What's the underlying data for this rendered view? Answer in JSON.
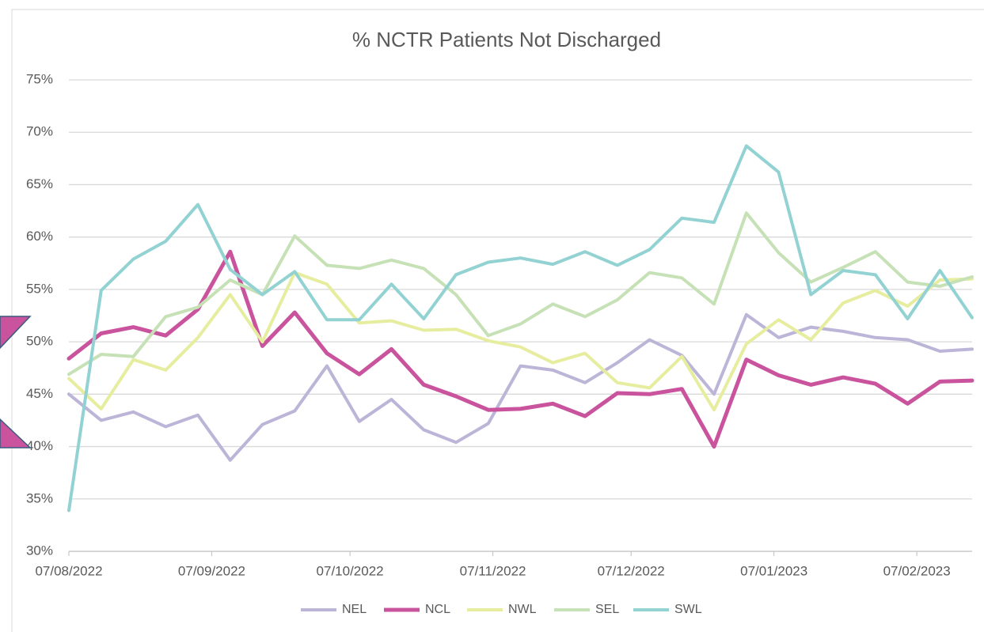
{
  "chart_data": {
    "type": "line",
    "title": "% NCTR Patients Not Discharged",
    "x": [
      "2022-08-07",
      "2022-08-14",
      "2022-08-21",
      "2022-08-28",
      "2022-09-04",
      "2022-09-11",
      "2022-09-18",
      "2022-09-25",
      "2022-10-02",
      "2022-10-09",
      "2022-10-16",
      "2022-10-23",
      "2022-10-30",
      "2022-11-06",
      "2022-11-13",
      "2022-11-20",
      "2022-11-27",
      "2022-12-04",
      "2022-12-11",
      "2022-12-18",
      "2022-12-25",
      "2023-01-01",
      "2023-01-08",
      "2023-01-15",
      "2023-01-22",
      "2023-01-29",
      "2023-02-05",
      "2023-02-12",
      "2023-02-19"
    ],
    "series": [
      {
        "name": "NEL",
        "color": "#bcb5d8",
        "values": [
          45.0,
          42.5,
          43.3,
          41.9,
          43.0,
          38.7,
          42.1,
          43.4,
          47.7,
          42.4,
          44.5,
          41.6,
          40.4,
          42.2,
          47.7,
          47.3,
          46.1,
          48.0,
          50.2,
          48.7,
          45.0,
          52.6,
          50.4,
          51.4,
          51.0,
          50.4,
          50.2,
          49.1,
          49.3
        ]
      },
      {
        "name": "NCL",
        "color": "#c9539c",
        "values": [
          48.4,
          50.8,
          51.4,
          50.6,
          53.1,
          58.6,
          49.6,
          52.8,
          48.9,
          46.9,
          49.3,
          45.9,
          44.8,
          43.5,
          43.6,
          44.1,
          42.9,
          45.1,
          45.0,
          45.5,
          40.0,
          48.3,
          46.8,
          45.9,
          46.6,
          46.0,
          44.1,
          46.2,
          46.3
        ]
      },
      {
        "name": "NWL",
        "color": "#e6ed9e",
        "values": [
          46.5,
          43.6,
          48.3,
          47.3,
          50.4,
          54.5,
          50.0,
          56.6,
          55.5,
          51.8,
          52.0,
          51.1,
          51.2,
          50.1,
          49.5,
          48.0,
          48.9,
          46.1,
          45.6,
          48.6,
          43.5,
          49.8,
          52.1,
          50.2,
          53.7,
          54.9,
          53.4,
          55.9,
          56.0
        ]
      },
      {
        "name": "SEL",
        "color": "#c6e1b6",
        "values": [
          46.9,
          48.8,
          48.6,
          52.4,
          53.3,
          55.9,
          54.5,
          60.1,
          57.3,
          57.0,
          57.8,
          57.0,
          54.5,
          50.6,
          51.7,
          53.6,
          52.4,
          54.0,
          56.6,
          56.1,
          53.6,
          62.3,
          58.5,
          55.7,
          57.1,
          58.6,
          55.7,
          55.3,
          56.2
        ]
      },
      {
        "name": "SWL",
        "color": "#93d2d2",
        "values": [
          33.9,
          54.9,
          57.9,
          59.6,
          63.1,
          56.9,
          54.5,
          56.7,
          52.1,
          52.1,
          55.5,
          52.2,
          56.4,
          57.6,
          58.0,
          57.4,
          58.6,
          57.3,
          58.8,
          61.8,
          61.4,
          68.7,
          66.2,
          54.5,
          56.8,
          56.4,
          52.2,
          56.8,
          52.3
        ]
      }
    ],
    "xlim": [
      "2022-08-07",
      "2023-02-19"
    ],
    "xticks": [
      {
        "value": "2022-08-07",
        "label": "07/08/2022"
      },
      {
        "value": "2022-09-07",
        "label": "07/09/2022"
      },
      {
        "value": "2022-10-07",
        "label": "07/10/2022"
      },
      {
        "value": "2022-11-07",
        "label": "07/11/2022"
      },
      {
        "value": "2022-12-07",
        "label": "07/12/2022"
      },
      {
        "value": "2023-01-07",
        "label": "07/01/2023"
      },
      {
        "value": "2023-02-07",
        "label": "07/02/2023"
      }
    ],
    "ylim": [
      30,
      75
    ],
    "yticks": [
      {
        "value": 30,
        "label": "30%"
      },
      {
        "value": 35,
        "label": "35%"
      },
      {
        "value": 40,
        "label": "40%"
      },
      {
        "value": 45,
        "label": "45%"
      },
      {
        "value": 50,
        "label": "50%"
      },
      {
        "value": 55,
        "label": "55%"
      },
      {
        "value": 60,
        "label": "60%"
      },
      {
        "value": 65,
        "label": "65%"
      },
      {
        "value": 70,
        "label": "70%"
      },
      {
        "value": 75,
        "label": "75%"
      }
    ],
    "grid": true,
    "legend": "bottom"
  }
}
